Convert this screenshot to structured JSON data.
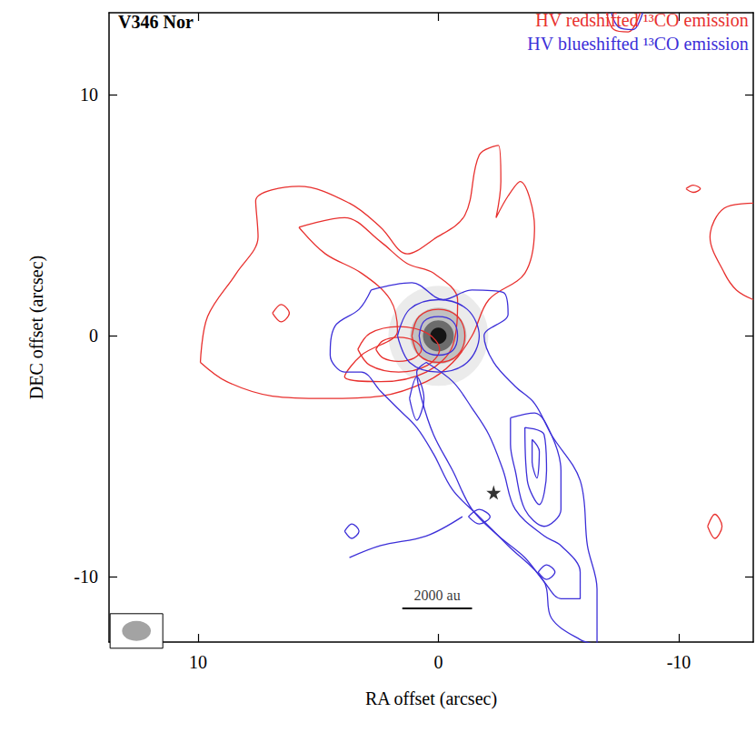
{
  "chart_data": {
    "type": "contour",
    "title": "V346 Nor",
    "x_label": "RA offset (arcsec)",
    "y_label": "DEC offset (arcsec)",
    "xlim": [
      13.7,
      -13.1
    ],
    "ylim": [
      -12.7,
      13.4
    ],
    "xticks": [
      10,
      0,
      -10
    ],
    "yticks": [
      -10,
      0,
      10
    ],
    "grid": false,
    "legend": "upper right",
    "series": [
      {
        "name": "HV redshifted ¹³CO emission",
        "color": "#e8302e",
        "contours": [
          [
            [
              9.9,
              -1.1
            ],
            [
              9.6,
              0.8
            ],
            [
              8.4,
              2.6
            ],
            [
              7.5,
              4.1
            ],
            [
              7.6,
              5.6
            ],
            [
              5.8,
              6.2
            ],
            [
              3.7,
              5.5
            ],
            [
              2.4,
              4.5
            ],
            [
              1.3,
              3.4
            ],
            [
              0.2,
              4.0
            ],
            [
              -1.1,
              5.0
            ],
            [
              -1.7,
              7.5
            ],
            [
              -2.5,
              7.9
            ],
            [
              -2.6,
              6.4
            ],
            [
              -2.4,
              4.9
            ],
            [
              -2.9,
              5.8
            ],
            [
              -3.4,
              6.4
            ],
            [
              -4.0,
              4.5
            ],
            [
              -3.6,
              2.6
            ],
            [
              -2.1,
              1.5
            ],
            [
              -1.4,
              0
            ],
            [
              -0.6,
              -1.1
            ],
            [
              0.5,
              -1.9
            ],
            [
              2.4,
              -2.5
            ],
            [
              4.7,
              -2.6
            ],
            [
              6.9,
              -2.5
            ],
            [
              8.8,
              -1.9
            ],
            [
              9.9,
              -1.1
            ]
          ],
          [
            [
              5.8,
              4.5
            ],
            [
              3.9,
              4.9
            ],
            [
              2.4,
              3.9
            ],
            [
              1.3,
              3.0
            ],
            [
              0.2,
              2.6
            ],
            [
              -0.8,
              1.5
            ],
            [
              -0.6,
              -0.4
            ],
            [
              0.5,
              -1.5
            ],
            [
              2.4,
              -1.9
            ],
            [
              3.9,
              -1.7
            ],
            [
              3.2,
              -0.8
            ],
            [
              1.7,
              0.2
            ],
            [
              2.0,
              1.5
            ],
            [
              3.2,
              2.6
            ],
            [
              4.7,
              3.4
            ],
            [
              5.8,
              4.5
            ]
          ],
          [
            [
              3.35,
              -0.56
            ],
            [
              2.85,
              0.1
            ],
            [
              1.65,
              0.38
            ],
            [
              0.45,
              0.1
            ],
            [
              -0.05,
              -0.56
            ],
            [
              0.45,
              -1.22
            ],
            [
              1.65,
              -1.5
            ],
            [
              2.85,
              -1.22
            ],
            [
              3.35,
              -0.56
            ]
          ],
          [
            [
              2.6,
              -0.56
            ],
            [
              2.3,
              -0.2
            ],
            [
              1.65,
              -0.06
            ],
            [
              1.0,
              -0.2
            ],
            [
              0.7,
              -0.56
            ],
            [
              1.0,
              -0.92
            ],
            [
              1.65,
              -1.06
            ],
            [
              2.3,
              -0.92
            ],
            [
              2.6,
              -0.56
            ]
          ],
          [
            [
              1.1,
              0
            ],
            [
              0.8,
              0.8
            ],
            [
              0,
              1.1
            ],
            [
              -0.8,
              0.8
            ],
            [
              -1.1,
              0
            ],
            [
              -0.8,
              -0.8
            ],
            [
              0,
              -1.1
            ],
            [
              0.8,
              -0.8
            ],
            [
              1.1,
              0
            ]
          ],
          [
            [
              6.9,
              0.94
            ],
            [
              6.54,
              1.3
            ],
            [
              6.2,
              0.94
            ],
            [
              6.54,
              0.58
            ],
            [
              6.9,
              0.94
            ]
          ],
          [
            [
              -13.1,
              5.5
            ],
            [
              -11.9,
              5.3
            ],
            [
              -11.3,
              4.1
            ],
            [
              -11.9,
              2.6
            ],
            [
              -12.4,
              1.9
            ],
            [
              -13.1,
              1.5
            ]
          ],
          [
            [
              -11.2,
              -7.9
            ],
            [
              -11.5,
              -7.4
            ],
            [
              -11.8,
              -7.9
            ],
            [
              -11.5,
              -8.4
            ],
            [
              -11.2,
              -7.9
            ]
          ],
          [
            [
              -10.3,
              6.1
            ],
            [
              -10.6,
              6.25
            ],
            [
              -10.9,
              6.1
            ],
            [
              -10.6,
              5.95
            ],
            [
              -10.3,
              6.1
            ]
          ],
          [
            [
              -7.0,
              13.4
            ],
            [
              -7.3,
              12.7
            ],
            [
              -7.9,
              12.6
            ],
            [
              -8.4,
              13.4
            ]
          ]
        ]
      },
      {
        "name": "HV blueshifted ¹³CO emission",
        "color": "#3c2fd8",
        "contours": [
          [
            [
              2.8,
              1.9
            ],
            [
              1.1,
              2.2
            ],
            [
              -0.2,
              1.5
            ],
            [
              -1.4,
              1.9
            ],
            [
              -2.7,
              1.8
            ],
            [
              -2.9,
              0.9
            ],
            [
              -1.9,
              0
            ],
            [
              -2.3,
              -1.1
            ],
            [
              -3.2,
              -2.1
            ],
            [
              -4.0,
              -2.8
            ],
            [
              -4.7,
              -4.1
            ],
            [
              -5.9,
              -6.0
            ],
            [
              -6.2,
              -8.7
            ],
            [
              -6.6,
              -10.5
            ],
            [
              -6.6,
              -12.8
            ],
            [
              -5.9,
              -12.6
            ],
            [
              -4.7,
              -11.7
            ],
            [
              -4.4,
              -10.2
            ],
            [
              -2.9,
              -8.7
            ],
            [
              -1.7,
              -7.5
            ],
            [
              -0.6,
              -6.4
            ],
            [
              0.2,
              -4.9
            ],
            [
              0.9,
              -3.8
            ],
            [
              1.7,
              -3.0
            ],
            [
              2.4,
              -2.3
            ],
            [
              3.2,
              -1.5
            ],
            [
              3.9,
              -1.5
            ],
            [
              4.5,
              -0.8
            ],
            [
              4.3,
              0.4
            ],
            [
              3.3,
              1.1
            ],
            [
              2.8,
              1.9
            ]
          ],
          [
            [
              3.7,
              -9.2
            ],
            [
              2.4,
              -8.7
            ],
            [
              0.5,
              -8.3
            ],
            [
              -1.0,
              -7.5
            ]
          ],
          [
            [
              3.9,
              -8.1
            ],
            [
              3.6,
              -7.8
            ],
            [
              3.3,
              -8.1
            ],
            [
              3.6,
              -8.4
            ],
            [
              3.9,
              -8.1
            ]
          ],
          [
            [
              0.5,
              -1.1
            ],
            [
              -0.6,
              -1.9
            ],
            [
              -1.4,
              -3.0
            ],
            [
              -2.1,
              -4.1
            ],
            [
              -2.7,
              -5.6
            ],
            [
              -3.2,
              -7.2
            ],
            [
              -4.4,
              -8.3
            ],
            [
              -5.1,
              -8.7
            ],
            [
              -5.9,
              -9.8
            ],
            [
              -5.9,
              -10.9
            ],
            [
              -5.1,
              -10.9
            ],
            [
              -4.4,
              -10.2
            ],
            [
              -3.6,
              -9.2
            ],
            [
              -2.5,
              -8.3
            ],
            [
              -1.4,
              -7.2
            ],
            [
              -0.6,
              -5.6
            ],
            [
              0.2,
              -4.1
            ],
            [
              0.7,
              -2.6
            ],
            [
              0.9,
              -1.5
            ],
            [
              0.5,
              -1.1
            ]
          ],
          [
            [
              -3.0,
              -3.4
            ],
            [
              -4.0,
              -3.2
            ],
            [
              -4.7,
              -4.1
            ],
            [
              -5.1,
              -5.6
            ],
            [
              -5.1,
              -7.2
            ],
            [
              -4.4,
              -7.9
            ],
            [
              -3.6,
              -7.2
            ],
            [
              -3.2,
              -5.6
            ],
            [
              -3.0,
              -4.5
            ],
            [
              -3.0,
              -3.4
            ]
          ],
          [
            [
              -3.6,
              -3.8
            ],
            [
              -4.4,
              -4.1
            ],
            [
              -4.5,
              -5.6
            ],
            [
              -4.2,
              -7.0
            ],
            [
              -3.7,
              -6.0
            ],
            [
              -3.6,
              -3.8
            ]
          ],
          [
            [
              -3.9,
              -4.3
            ],
            [
              -4.2,
              -4.8
            ],
            [
              -4.1,
              -5.9
            ],
            [
              -3.9,
              -5.2
            ],
            [
              -3.9,
              -4.3
            ]
          ],
          [
            [
              1.7,
              0
            ],
            [
              1.2,
              1.1
            ],
            [
              0,
              1.5
            ],
            [
              -1.2,
              1.1
            ],
            [
              -1.7,
              0
            ],
            [
              -1.2,
              -1.1
            ],
            [
              0,
              -1.5
            ],
            [
              1.2,
              -1.1
            ],
            [
              1.7,
              0
            ]
          ],
          [
            [
              0.8,
              0
            ],
            [
              0.6,
              0.6
            ],
            [
              0,
              0.8
            ],
            [
              -0.6,
              0.6
            ],
            [
              -0.8,
              0
            ],
            [
              -0.6,
              -0.6
            ],
            [
              0,
              -0.8
            ],
            [
              0.6,
              -0.6
            ],
            [
              0.8,
              0
            ]
          ],
          [
            [
              -1.25,
              -7.5
            ],
            [
              -1.7,
              -7.2
            ],
            [
              -2.15,
              -7.5
            ],
            [
              -1.7,
              -7.8
            ],
            [
              -1.25,
              -7.5
            ]
          ],
          [
            [
              1.2,
              -2.6
            ],
            [
              0.9,
              -1.7
            ],
            [
              0.6,
              -2.6
            ],
            [
              0.9,
              -3.5
            ],
            [
              1.2,
              -2.6
            ]
          ],
          [
            [
              -4.15,
              -9.8
            ],
            [
              -4.5,
              -9.5
            ],
            [
              -4.85,
              -9.8
            ],
            [
              -4.5,
              -10.1
            ],
            [
              -4.15,
              -9.8
            ]
          ],
          [
            [
              -7.2,
              13.4
            ],
            [
              -7.5,
              12.8
            ],
            [
              -8.1,
              12.7
            ],
            [
              -8.5,
              13.4
            ]
          ]
        ]
      }
    ],
    "continuum_peak": [
      0,
      0
    ],
    "star": {
      "x": -2.3,
      "y": -6.5,
      "marker": "star"
    },
    "beam": {
      "x": 12.56,
      "y": -12.24,
      "major": 1.2,
      "minor": 0.83
    },
    "scale_bar": {
      "label": "2000 au",
      "x": [
        1.5,
        -1.4
      ],
      "y": -11.3
    }
  }
}
